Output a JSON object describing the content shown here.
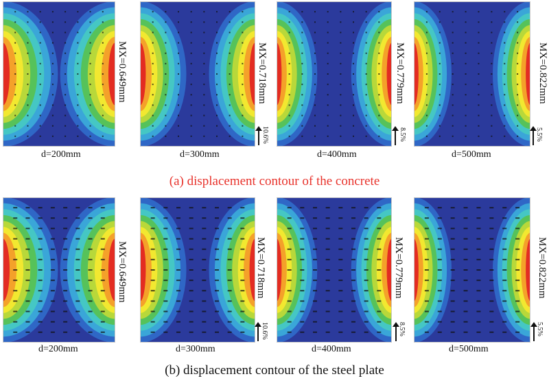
{
  "colors": {
    "caption_a": "#e8322b",
    "caption_b": "#111111",
    "contour_levels": [
      "#2b3a9c",
      "#2f67c6",
      "#3aa6d8",
      "#45c7c4",
      "#56c25a",
      "#b8d83a",
      "#f2e830",
      "#f4a12a",
      "#e32c22"
    ]
  },
  "row_a": {
    "caption": "(a) displacement contour of the concrete",
    "panels": [
      {
        "d_label": "d=200mm",
        "mx_label": "MX=0.649mm",
        "percent": ""
      },
      {
        "d_label": "d=300mm",
        "mx_label": "MX=0.718mm",
        "percent": "10.6%"
      },
      {
        "d_label": "d=400mm",
        "mx_label": "MX=0.779mm",
        "percent": "8.5%"
      },
      {
        "d_label": "d=500mm",
        "mx_label": "MX=0.822mm",
        "percent": "5.5%"
      }
    ]
  },
  "row_b": {
    "caption": "(b) displacement contour of the steel plate",
    "panels": [
      {
        "d_label": "d=200mm",
        "mx_label": "MX=0.649mm",
        "percent": ""
      },
      {
        "d_label": "d=300mm",
        "mx_label": "MX=0.718mm",
        "percent": "10.6%"
      },
      {
        "d_label": "d=400mm",
        "mx_label": "MX=0.779mm",
        "percent": "8.5%"
      },
      {
        "d_label": "d=500mm",
        "mx_label": "MX=0.822mm",
        "percent": "5.5%"
      }
    ]
  }
}
